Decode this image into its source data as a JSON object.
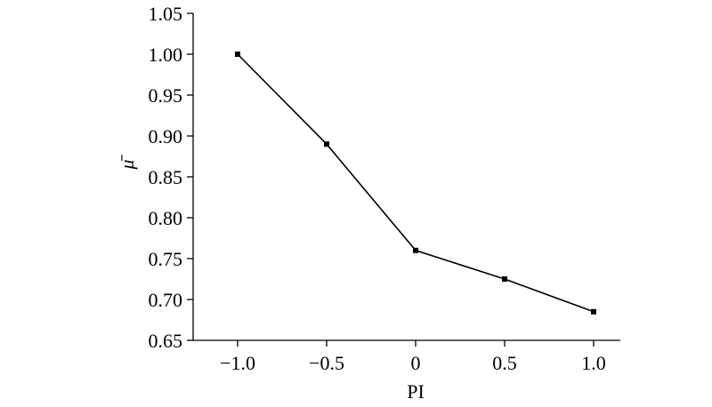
{
  "chart_data": {
    "type": "line",
    "x_label": "PI",
    "y_label": "μ̄",
    "x": [
      -1,
      -0.5,
      0,
      0.5,
      1
    ],
    "values": [
      1.0,
      0.89,
      0.76,
      0.725,
      0.685
    ],
    "color": "#000000",
    "xlim": [
      -1.25,
      1.15
    ],
    "xticks": [
      {
        "value": -1,
        "label": "−1.0"
      },
      {
        "value": -0.5,
        "label": "−0.5"
      },
      0,
      0.5,
      {
        "value": 1,
        "label": "1.0"
      }
    ],
    "ylim": [
      0.65,
      1.05
    ],
    "yticks": [
      0.65,
      {
        "value": 0.7,
        "label": "0.70"
      },
      0.75,
      {
        "value": 0.8,
        "label": "0.80"
      },
      0.85,
      {
        "value": 0.9,
        "label": "0.90"
      },
      0.95,
      {
        "value": 1,
        "label": "1.00"
      },
      1.05
    ],
    "grid": false
  }
}
